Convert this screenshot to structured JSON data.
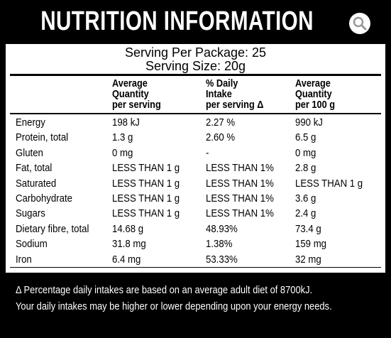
{
  "header": {
    "title": "NUTRITION INFORMATION"
  },
  "serving": {
    "per_package": "Serving Per Package: 25",
    "size": "Serving Size: 20g"
  },
  "table": {
    "columns": [
      [
        "Average",
        "Quantity",
        "per serving"
      ],
      [
        "% Daily",
        "Intake",
        "per serving Δ"
      ],
      [
        "Average",
        "Quantity",
        "per 100 g"
      ]
    ],
    "rows": [
      [
        "Energy",
        "198 kJ",
        "2.27 %",
        "990 kJ"
      ],
      [
        "Protein, total",
        "1.3 g",
        "2.60 %",
        "6.5 g"
      ],
      [
        "Gluten",
        "0 mg",
        "-",
        "0 mg"
      ],
      [
        "Fat, total",
        "LESS THAN 1 g",
        "LESS THAN 1%",
        "2.8 g"
      ],
      [
        "Saturated",
        "LESS THAN 1 g",
        "LESS THAN 1%",
        "LESS THAN 1 g"
      ],
      [
        "Carbohydrate",
        "LESS THAN 1 g",
        "LESS THAN 1%",
        "3.6 g"
      ],
      [
        "Sugars",
        "LESS THAN 1 g",
        "LESS THAN 1%",
        "2.4 g"
      ],
      [
        "Dietary fibre, total",
        "14.68 g",
        "48.93%",
        "73.4 g"
      ],
      [
        "Sodium",
        "31.8 mg",
        "1.38%",
        "159 mg"
      ],
      [
        "Iron",
        "6.4 mg",
        "53.33%",
        "32 mg"
      ]
    ]
  },
  "footnote": [
    "Δ Percentage daily intakes are based on an average adult diet of 8700kJ.",
    "Your daily intakes may be higher or lower depending upon your energy needs."
  ]
}
